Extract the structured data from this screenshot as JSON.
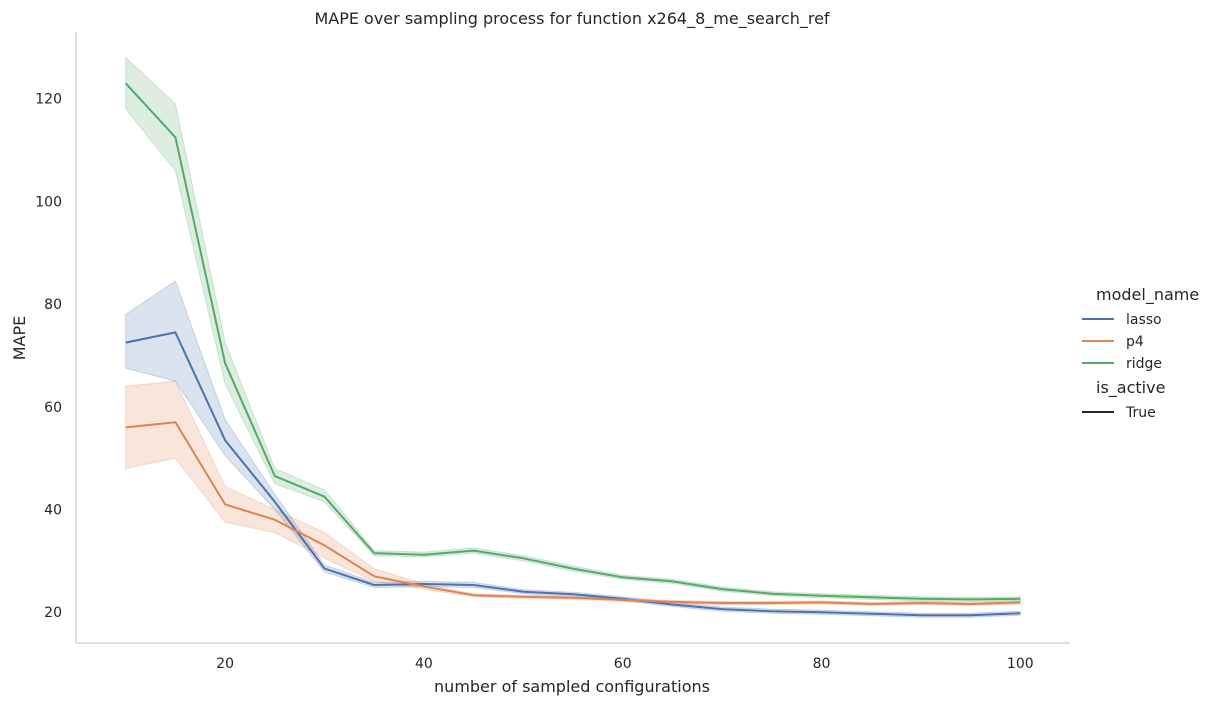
{
  "chart_data": {
    "type": "line",
    "title": "MAPE over sampling process for function x264_8_me_search_ref",
    "xlabel": "number of sampled configurations",
    "ylabel": "MAPE",
    "xlim": [
      5,
      105
    ],
    "ylim": [
      14,
      133
    ],
    "xticks": [
      20,
      40,
      60,
      80,
      100
    ],
    "yticks": [
      20,
      40,
      60,
      80,
      100,
      120
    ],
    "grid": false,
    "legend": {
      "placement": "right",
      "hue_title": "model_name",
      "style_title": "is_active",
      "style_entries": [
        {
          "label": "True",
          "color": "#262626"
        }
      ]
    },
    "x": [
      10,
      15,
      20,
      25,
      30,
      35,
      40,
      45,
      50,
      55,
      60,
      65,
      70,
      75,
      80,
      85,
      90,
      95,
      100
    ],
    "series": [
      {
        "name": "lasso",
        "color": "#4c72b0",
        "values": [
          72.5,
          74.5,
          53.5,
          41.5,
          28.5,
          25.3,
          25.5,
          25.3,
          24.0,
          23.5,
          22.6,
          21.5,
          20.6,
          20.2,
          20.0,
          19.7,
          19.4,
          19.4,
          19.8
        ],
        "ci_low": [
          67.5,
          65.0,
          50.5,
          40.0,
          27.8,
          24.8,
          25.0,
          24.8,
          23.6,
          23.1,
          22.2,
          21.1,
          20.2,
          19.8,
          19.6,
          19.3,
          19.0,
          19.0,
          19.4
        ],
        "ci_high": [
          78.0,
          84.5,
          57.5,
          43.0,
          29.2,
          25.8,
          26.0,
          25.8,
          24.4,
          23.9,
          23.0,
          21.9,
          21.0,
          20.6,
          20.4,
          20.1,
          19.8,
          19.8,
          20.2
        ]
      },
      {
        "name": "p4",
        "color": "#dd8452",
        "values": [
          56.0,
          57.0,
          41.0,
          38.0,
          33.0,
          27.0,
          25.0,
          23.3,
          23.0,
          22.8,
          22.4,
          22.0,
          21.8,
          21.8,
          21.9,
          21.6,
          21.8,
          21.6,
          21.9
        ],
        "ci_low": [
          48.0,
          50.0,
          37.5,
          35.5,
          30.5,
          26.0,
          24.5,
          23.0,
          22.7,
          22.5,
          22.1,
          21.7,
          21.5,
          21.5,
          21.6,
          21.3,
          21.5,
          21.3,
          21.6
        ],
        "ci_high": [
          64.0,
          65.0,
          44.5,
          40.0,
          35.5,
          28.5,
          25.5,
          23.6,
          23.3,
          23.1,
          22.7,
          22.3,
          22.1,
          22.1,
          22.2,
          21.9,
          22.1,
          21.9,
          22.2
        ]
      },
      {
        "name": "ridge",
        "color": "#55a868",
        "values": [
          123.0,
          112.5,
          68.5,
          46.5,
          42.5,
          31.5,
          31.2,
          32.0,
          30.5,
          28.5,
          26.8,
          26.0,
          24.5,
          23.6,
          23.2,
          22.9,
          22.6,
          22.5,
          22.6
        ],
        "ci_low": [
          118.0,
          106.0,
          64.5,
          45.0,
          41.5,
          31.0,
          30.8,
          31.5,
          30.0,
          28.0,
          26.4,
          25.6,
          24.1,
          23.2,
          22.8,
          22.5,
          22.2,
          22.1,
          22.2
        ],
        "ci_high": [
          128.0,
          119.0,
          72.5,
          48.0,
          43.8,
          32.0,
          31.7,
          32.5,
          31.0,
          29.0,
          27.2,
          26.4,
          24.9,
          24.0,
          23.6,
          23.3,
          23.0,
          22.9,
          23.0
        ]
      }
    ]
  }
}
